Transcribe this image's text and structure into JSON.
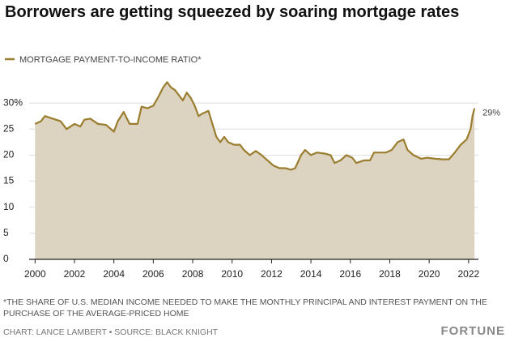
{
  "chart_data": {
    "type": "area",
    "title": "Borrowers are getting squeezed by soaring mortgage rates",
    "footnote": "*THE SHARE OF U.S. MEDIAN INCOME NEEDED TO MAKE THE MONTHLY PRINCIPAL AND INTEREST PAYMENT ON THE PURCHASE OF THE AVERAGE-PRICED HOME",
    "source": "CHART: LANCE LAMBERT • SOURCE: BLACK KNIGHT",
    "publisher": "FORTUNE",
    "xlim": [
      1999.7,
      2022.5
    ],
    "xticks": [
      2000,
      2002,
      2004,
      2006,
      2008,
      2010,
      2012,
      2014,
      2016,
      2018,
      2020,
      2022
    ],
    "ylim": [
      0,
      35
    ],
    "yticks": [
      0,
      5,
      10,
      15,
      20,
      25,
      {
        "value": 30,
        "label": "30%"
      }
    ],
    "grid": true,
    "series": [
      {
        "name": "MORTGAGE PAYMENT-TO-INCOME RATIO*",
        "color": "#9a7d2e",
        "fill": "#dcd3c0",
        "x": [
          2000.0,
          2000.3,
          2000.5,
          2000.9,
          2001.3,
          2001.6,
          2002.0,
          2002.3,
          2002.5,
          2002.8,
          2003.2,
          2003.6,
          2004.0,
          2004.2,
          2004.5,
          2004.8,
          2005.2,
          2005.4,
          2005.7,
          2006.0,
          2006.3,
          2006.5,
          2006.7,
          2006.9,
          2007.1,
          2007.3,
          2007.5,
          2007.7,
          2007.9,
          2008.1,
          2008.3,
          2008.5,
          2008.8,
          2009.0,
          2009.2,
          2009.4,
          2009.6,
          2009.8,
          2010.1,
          2010.4,
          2010.6,
          2010.9,
          2011.2,
          2011.5,
          2011.8,
          2012.1,
          2012.4,
          2012.7,
          2013.0,
          2013.2,
          2013.5,
          2013.7,
          2014.0,
          2014.3,
          2014.7,
          2015.0,
          2015.2,
          2015.5,
          2015.8,
          2016.1,
          2016.3,
          2016.7,
          2017.0,
          2017.2,
          2017.5,
          2017.8,
          2018.1,
          2018.4,
          2018.7,
          2018.9,
          2019.2,
          2019.6,
          2019.9,
          2020.3,
          2020.7,
          2021.0,
          2021.3,
          2021.6,
          2021.9,
          2022.1,
          2022.2,
          2022.3
        ],
        "values": [
          26,
          26.5,
          27.5,
          27,
          26.5,
          25,
          26,
          25.5,
          26.8,
          27,
          26,
          25.8,
          24.5,
          26.5,
          28.3,
          26,
          26,
          29.3,
          29,
          29.5,
          31.5,
          33,
          34,
          33,
          32.5,
          31.5,
          30.5,
          32,
          31,
          29.5,
          27.5,
          28,
          28.5,
          26,
          23.5,
          22.5,
          23.5,
          22.5,
          22,
          22,
          21,
          20,
          20.8,
          20,
          19,
          18,
          17.5,
          17.5,
          17.2,
          17.5,
          20,
          21,
          20,
          20.5,
          20.3,
          20,
          18.5,
          19,
          20,
          19.5,
          18.5,
          19,
          19,
          20.5,
          20.5,
          20.5,
          21,
          22.5,
          23,
          21,
          20,
          19.3,
          19.5,
          19.3,
          19.2,
          19.2,
          20.5,
          22,
          23,
          25,
          27.5,
          29
        ],
        "value_labels": [
          null,
          null,
          null,
          null,
          null,
          null,
          null,
          null,
          null,
          null,
          null,
          null,
          null,
          null,
          null,
          null,
          null,
          null,
          null,
          null,
          null,
          null,
          null,
          null,
          null,
          null,
          null,
          null,
          null,
          null,
          null,
          null,
          null,
          null,
          null,
          null,
          null,
          null,
          null,
          null,
          null,
          null,
          null,
          null,
          null,
          null,
          null,
          null,
          null,
          null,
          null,
          null,
          null,
          null,
          null,
          null,
          null,
          null,
          null,
          null,
          null,
          null,
          null,
          null,
          null,
          null,
          null,
          null,
          null,
          null,
          null,
          null,
          null,
          null,
          null,
          null,
          null,
          null,
          null,
          null,
          null,
          "29%"
        ]
      }
    ]
  }
}
